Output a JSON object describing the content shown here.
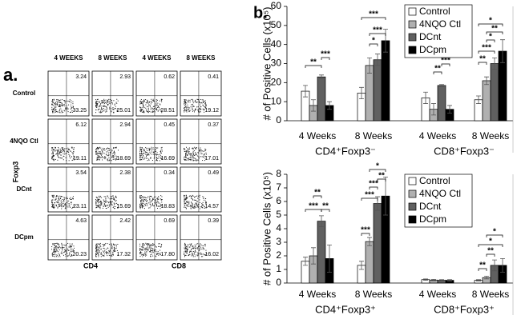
{
  "panel_a": {
    "label": "a.",
    "columns": [
      "4 WEEKS",
      "8 WEEKS",
      "4 WEEKS",
      "8 WEEKS"
    ],
    "rows": [
      "Control",
      "4NQO Ctl",
      "DCnt",
      "DCpm"
    ],
    "y_axis_label": "Foxp3",
    "x_axis_labels": [
      "CD4",
      "CD8"
    ],
    "quadrants": [
      [
        [
          "3.24",
          "33.25"
        ],
        [
          "2.93",
          "25.01"
        ],
        [
          "0.62",
          "28.51"
        ],
        [
          "0.41",
          "19.12"
        ]
      ],
      [
        [
          "6.12",
          "19.11"
        ],
        [
          "2.94",
          "18.69"
        ],
        [
          "0.45",
          "16.69"
        ],
        [
          "0.37",
          "17.01"
        ]
      ],
      [
        [
          "3.54",
          "23.11"
        ],
        [
          "2.38",
          "15.69"
        ],
        [
          "0.34",
          "18.83"
        ],
        [
          "0.49",
          "14.57"
        ]
      ],
      [
        [
          "4.63",
          "20.23"
        ],
        [
          "2.42",
          "17.32"
        ],
        [
          "0.69",
          "17.80"
        ],
        [
          "0.39",
          "16.02"
        ]
      ]
    ]
  },
  "panel_b_label": "b.",
  "chart_data": [
    {
      "type": "bar",
      "y_label": "# of Positive Cells (x10⁵)",
      "categories": [
        "4 Weeks",
        "8 Weeks",
        "4 Weeks",
        "8 Weeks"
      ],
      "groups": [
        "CD4⁺Foxp3⁻",
        "CD8⁺Foxp3⁻"
      ],
      "ylim": [
        0,
        60
      ],
      "yticks": [
        0,
        10,
        20,
        30,
        40,
        50,
        60
      ],
      "series": [
        {
          "name": "Control",
          "color": "#ffffff",
          "values": [
            15.5,
            14.5,
            12,
            11
          ],
          "errors": [
            3,
            3,
            3,
            2
          ]
        },
        {
          "name": "4NQO Ctl",
          "color": "#b0b0b0",
          "values": [
            8,
            29,
            6,
            21
          ],
          "errors": [
            3,
            4,
            3,
            2
          ]
        },
        {
          "name": "DCnt",
          "color": "#606060",
          "values": [
            23,
            32,
            18.5,
            30
          ],
          "errors": [
            1,
            3,
            0.5,
            3
          ]
        },
        {
          "name": "DCpm",
          "color": "#000000",
          "values": [
            8,
            42,
            6,
            36.5
          ],
          "errors": [
            2,
            6,
            2,
            6
          ]
        }
      ],
      "annotations": [
        "**",
        "***",
        "***",
        "***",
        "*",
        "**",
        "***",
        "*",
        "**",
        "*",
        "***",
        "**"
      ]
    },
    {
      "type": "bar",
      "y_label": "# of Positive Cells (x10⁵)",
      "categories": [
        "4 Weeks",
        "8 Weeks",
        "4 Weeks",
        "8 Weeks"
      ],
      "groups": [
        "CD4⁺Foxp3⁺",
        "CD8⁺Foxp3⁺"
      ],
      "ylim": [
        0,
        8
      ],
      "yticks": [
        0,
        1,
        2,
        3,
        4,
        5,
        6,
        7,
        8
      ],
      "series": [
        {
          "name": "Control",
          "color": "#ffffff",
          "values": [
            1.6,
            1.3,
            0.25,
            0.2
          ],
          "errors": [
            0.3,
            0.3,
            0.05,
            0.05
          ]
        },
        {
          "name": "4NQO Ctl",
          "color": "#b0b0b0",
          "values": [
            2,
            3.05,
            0.22,
            0.4
          ],
          "errors": [
            0.6,
            0.3,
            0.05,
            0.1
          ]
        },
        {
          "name": "DCnt",
          "color": "#606060",
          "values": [
            4.55,
            5.85,
            0.2,
            1.3
          ],
          "errors": [
            0.4,
            0.5,
            0.05,
            0.4
          ]
        },
        {
          "name": "DCpm",
          "color": "#000000",
          "values": [
            1.8,
            6.4,
            0.2,
            1.3
          ],
          "errors": [
            1,
            1.4,
            0.05,
            0.5
          ]
        }
      ],
      "annotations": [
        "**",
        "***",
        "**",
        "*",
        "**",
        "***",
        "***",
        "***",
        "*",
        "*",
        "**",
        "**"
      ]
    }
  ]
}
